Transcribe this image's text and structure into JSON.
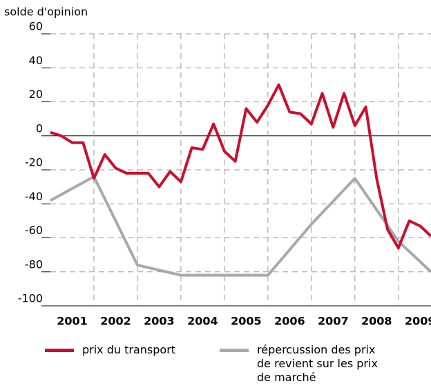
{
  "chart_data": {
    "type": "line",
    "title": "solde d'opinion",
    "xlim": [
      2001,
      2009.75
    ],
    "xticks": [
      {
        "value": 2001.5,
        "label": "2001"
      },
      {
        "value": 2002.5,
        "label": "2002"
      },
      {
        "value": 2003.5,
        "label": "2003"
      },
      {
        "value": 2004.5,
        "label": "2004"
      },
      {
        "value": 2005.5,
        "label": "2005"
      },
      {
        "value": 2006.5,
        "label": "2006"
      },
      {
        "value": 2007.5,
        "label": "2007"
      },
      {
        "value": 2008.5,
        "label": "2008"
      },
      {
        "value": 2009.5,
        "label": "2009"
      }
    ],
    "ylim": [
      -100,
      60
    ],
    "yticks": [
      -100,
      -80,
      -60,
      -40,
      -20,
      0,
      20,
      40,
      60
    ],
    "grid": true,
    "series": [
      {
        "name": "prix du transport",
        "color": "#c8102e",
        "x": [
          2001,
          2001.25,
          2001.5,
          2001.75,
          2002,
          2002.25,
          2002.5,
          2002.75,
          2003,
          2003.25,
          2003.5,
          2003.75,
          2004,
          2004.25,
          2004.5,
          2004.75,
          2005,
          2005.25,
          2005.5,
          2005.75,
          2006,
          2006.25,
          2006.5,
          2006.75,
          2007,
          2007.25,
          2007.5,
          2007.75,
          2008,
          2008.25,
          2008.5,
          2008.75,
          2009,
          2009.25,
          2009.5,
          2009.75
        ],
        "values": [
          2,
          0,
          -4,
          -4,
          -25,
          -11,
          -19,
          -22,
          -22,
          -22,
          -30,
          -21,
          -27,
          -7,
          -8,
          7,
          -9,
          -15,
          16,
          8,
          18,
          30,
          14,
          13,
          7,
          25,
          5,
          25,
          6,
          17,
          -25,
          -55,
          -66,
          -50,
          -53,
          -59
        ]
      },
      {
        "name": "répercussion des prix\nde revient sur les prix\nde marché",
        "color": "#a7a9ac",
        "x": [
          2001,
          2002,
          2003,
          2004,
          2005,
          2006,
          2007,
          2008,
          2009,
          2009.75
        ],
        "values": [
          -38,
          -24,
          -76,
          -82,
          -82,
          -82,
          -52,
          -25,
          -62,
          -80
        ]
      }
    ]
  }
}
